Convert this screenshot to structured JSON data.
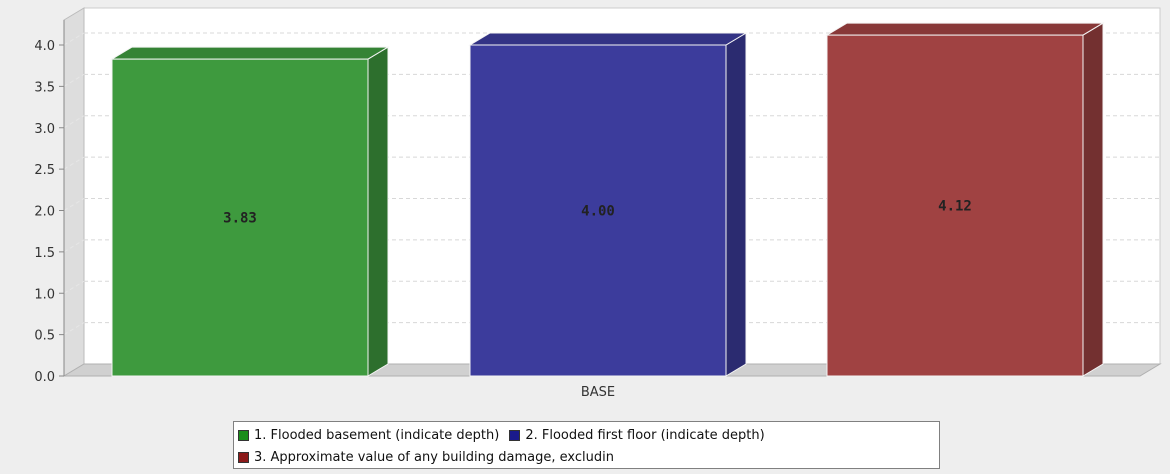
{
  "chart_data": {
    "type": "bar",
    "title": "",
    "xlabel": "",
    "ylabel": "",
    "categories": [
      "BASE"
    ],
    "ylim": [
      0,
      4.0
    ],
    "yticks": [
      "0.0",
      "0.5",
      "1.0",
      "1.5",
      "2.0",
      "2.5",
      "3.0",
      "3.5",
      "4.0"
    ],
    "grid": true,
    "legend_position": "bottom",
    "value_labels": [
      "3.83",
      "4.00",
      "4.12"
    ],
    "series": [
      {
        "name": "1. Flooded basement (indicate depth)",
        "values": [
          3.83
        ],
        "color": "#3e9a3e"
      },
      {
        "name": "2. Flooded first floor (indicate depth)",
        "values": [
          4.0
        ],
        "color": "#3c3c9c"
      },
      {
        "name": "3. Approximate value of any building damage, excludin",
        "values": [
          4.12
        ],
        "color": "#a04242"
      }
    ]
  }
}
